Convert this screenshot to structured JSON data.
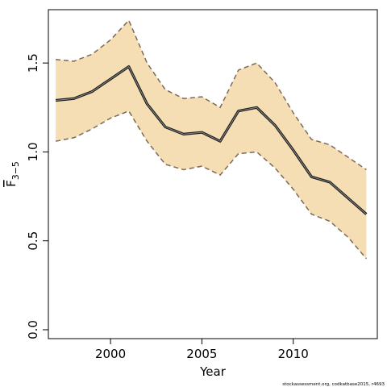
{
  "chart_data": {
    "type": "line",
    "xlabel": "Year",
    "ylabel": {
      "base": "F",
      "subscript": "3−5"
    },
    "credit": "stockassessment.org, codkatbase2015, r4693",
    "xlim": [
      1996.6,
      2014.6
    ],
    "ylim": [
      -0.05,
      1.8
    ],
    "x_ticks": [
      {
        "value": 2000,
        "label": "2000"
      },
      {
        "value": 2005,
        "label": "2005"
      },
      {
        "value": 2010,
        "label": "2010"
      }
    ],
    "y_ticks": [
      {
        "value": 0.0,
        "label": "0.0"
      },
      {
        "value": 0.5,
        "label": "0.5"
      },
      {
        "value": 1.0,
        "label": "1.0"
      },
      {
        "value": 1.5,
        "label": "1.5"
      }
    ],
    "x": [
      1997,
      1998,
      1999,
      2000,
      2001,
      2002,
      2003,
      2004,
      2005,
      2006,
      2007,
      2008,
      2009,
      2010,
      2011,
      2012,
      2013,
      2014
    ],
    "series": [
      {
        "role": "estimate",
        "values": [
          1.29,
          1.3,
          1.34,
          1.41,
          1.48,
          1.27,
          1.14,
          1.1,
          1.11,
          1.06,
          1.23,
          1.25,
          1.15,
          1.01,
          0.86,
          0.83,
          0.74,
          0.65
        ]
      },
      {
        "role": "upper",
        "values": [
          1.52,
          1.51,
          1.55,
          1.63,
          1.74,
          1.5,
          1.35,
          1.3,
          1.31,
          1.25,
          1.46,
          1.5,
          1.39,
          1.22,
          1.07,
          1.04,
          0.97,
          0.9
        ]
      },
      {
        "role": "lower",
        "values": [
          1.06,
          1.08,
          1.13,
          1.19,
          1.23,
          1.06,
          0.93,
          0.9,
          0.92,
          0.87,
          0.99,
          1.0,
          0.91,
          0.79,
          0.65,
          0.61,
          0.52,
          0.4
        ]
      }
    ],
    "colors": {
      "band_fill": "#f6deb4",
      "band_border": "#7b6a58",
      "line_outer": "#1a1a1a",
      "line_inner": "#8c8c8c"
    },
    "grid": false,
    "legend": false
  }
}
